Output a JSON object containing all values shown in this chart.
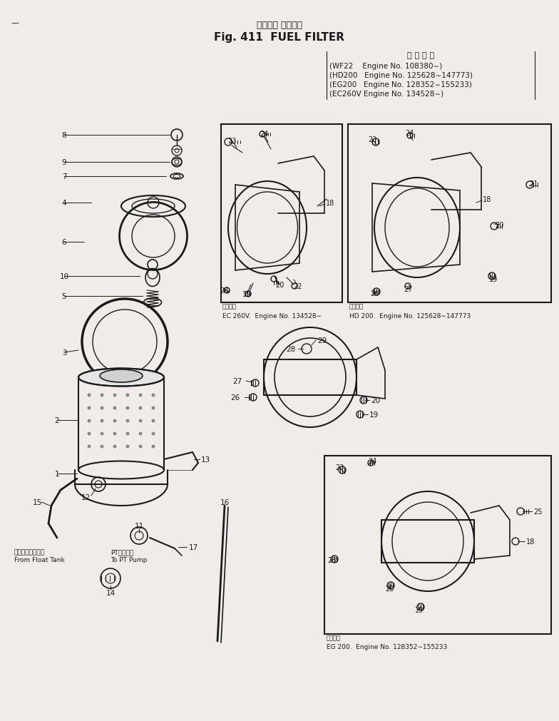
{
  "title_jp": "フェエル フィルタ",
  "title_en": "Fig. 411  FUEL FILTER",
  "app_header": "適 用 号 等",
  "app_lines": [
    "(WF22    Engine No. 108380∼)",
    "(HD200   Engine No. 125628∼147773)",
    "(EG200   Engine No. 128352∼155233)",
    "(EC260V Engine No. 134528∼)"
  ],
  "note_float": "フロータンクから\nFrom Float Tank",
  "note_pt": "PTポンプへ\nTo PT Pump",
  "ec260v_label1": "適用号等",
  "ec260v_label2": "EC 260V.  Engine No. 134528∼",
  "hd200_label1": "適用号等",
  "hd200_label2": "HD 200.  Engine No. 125628∼147773",
  "eg200_label1": "適用号等",
  "eg200_label2": "EG 200.  Engine No. 128352∼155233",
  "bg_color": "#f0ede8",
  "lc": "#1a1a1a",
  "tc": "#1a1a1a",
  "dpi": 100
}
